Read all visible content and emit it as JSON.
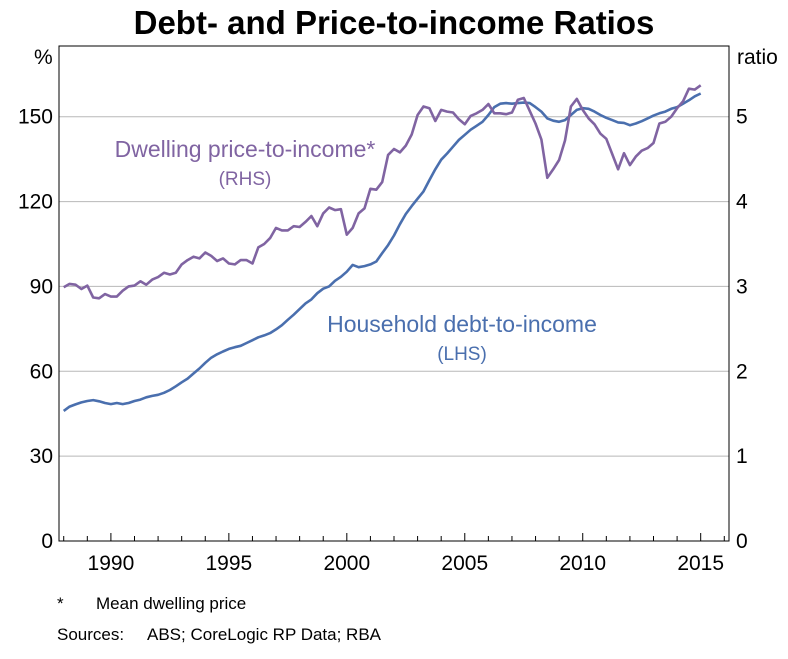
{
  "chart_data": {
    "type": "line",
    "title": "Debt- and Price-to-income Ratios",
    "left_axis": {
      "unit": "%",
      "range": [
        0,
        175
      ],
      "ticks": [
        0,
        30,
        60,
        90,
        120,
        150
      ]
    },
    "right_axis": {
      "unit": "ratio",
      "range": [
        0,
        5.8333
      ],
      "ticks": [
        0,
        1,
        2,
        3,
        4,
        5
      ]
    },
    "x_axis": {
      "range": [
        1987.8,
        2016.2
      ],
      "ticks": [
        1990,
        1995,
        2000,
        2005,
        2010,
        2015
      ]
    },
    "grid": "horizontal",
    "series": [
      {
        "name": "Household debt-to-income",
        "annotation_sub": "(LHS)",
        "color": "#4a6fae",
        "axis": "left",
        "points": [
          [
            1988.0,
            46
          ],
          [
            1988.25,
            47.5
          ],
          [
            1988.5,
            48.3
          ],
          [
            1988.75,
            49
          ],
          [
            1989.0,
            49.5
          ],
          [
            1989.25,
            49.8
          ],
          [
            1989.5,
            49.4
          ],
          [
            1989.75,
            48.8
          ],
          [
            1990.0,
            48.4
          ],
          [
            1990.25,
            48.8
          ],
          [
            1990.5,
            48.4
          ],
          [
            1990.75,
            48.8
          ],
          [
            1991.0,
            49.5
          ],
          [
            1991.25,
            50
          ],
          [
            1991.5,
            50.8
          ],
          [
            1991.75,
            51.3
          ],
          [
            1992.0,
            51.7
          ],
          [
            1992.25,
            52.4
          ],
          [
            1992.5,
            53.4
          ],
          [
            1992.75,
            54.7
          ],
          [
            1993.0,
            56.1
          ],
          [
            1993.25,
            57.4
          ],
          [
            1993.5,
            59.2
          ],
          [
            1993.75,
            61
          ],
          [
            1994.0,
            63
          ],
          [
            1994.25,
            64.8
          ],
          [
            1994.5,
            66
          ],
          [
            1994.75,
            67
          ],
          [
            1995.0,
            67.9
          ],
          [
            1995.25,
            68.5
          ],
          [
            1995.5,
            69
          ],
          [
            1995.75,
            70
          ],
          [
            1996.0,
            71
          ],
          [
            1996.25,
            72
          ],
          [
            1996.5,
            72.7
          ],
          [
            1996.75,
            73.5
          ],
          [
            1997.0,
            74.8
          ],
          [
            1997.25,
            76.3
          ],
          [
            1997.5,
            78.2
          ],
          [
            1997.75,
            80
          ],
          [
            1998.0,
            82
          ],
          [
            1998.25,
            84
          ],
          [
            1998.5,
            85.4
          ],
          [
            1998.75,
            87.6
          ],
          [
            1999.0,
            89.2
          ],
          [
            1999.25,
            90
          ],
          [
            1999.5,
            92
          ],
          [
            1999.75,
            93.4
          ],
          [
            2000.0,
            95.2
          ],
          [
            2000.25,
            97.6
          ],
          [
            2000.5,
            96.8
          ],
          [
            2000.75,
            97.2
          ],
          [
            2001.0,
            97.8
          ],
          [
            2001.25,
            98.8
          ],
          [
            2001.5,
            101.8
          ],
          [
            2001.75,
            104.6
          ],
          [
            2002.0,
            108
          ],
          [
            2002.25,
            112
          ],
          [
            2002.5,
            115.6
          ],
          [
            2002.75,
            118.4
          ],
          [
            2003.0,
            121
          ],
          [
            2003.25,
            123.6
          ],
          [
            2003.5,
            127.6
          ],
          [
            2003.75,
            131.4
          ],
          [
            2004.0,
            134.8
          ],
          [
            2004.25,
            137
          ],
          [
            2004.5,
            139.4
          ],
          [
            2004.75,
            141.8
          ],
          [
            2005.0,
            143.6
          ],
          [
            2005.25,
            145.4
          ],
          [
            2005.5,
            146.8
          ],
          [
            2005.75,
            148.2
          ],
          [
            2006.0,
            150.6
          ],
          [
            2006.25,
            153.4
          ],
          [
            2006.5,
            154.6
          ],
          [
            2006.75,
            154.8
          ],
          [
            2007.0,
            154.6
          ],
          [
            2007.25,
            154.8
          ],
          [
            2007.5,
            155
          ],
          [
            2007.75,
            154.8
          ],
          [
            2008.0,
            153.4
          ],
          [
            2008.25,
            151.8
          ],
          [
            2008.5,
            149.4
          ],
          [
            2008.75,
            148.6
          ],
          [
            2009.0,
            148.2
          ],
          [
            2009.25,
            148.8
          ],
          [
            2009.5,
            150.6
          ],
          [
            2009.75,
            152.4
          ],
          [
            2010.0,
            153
          ],
          [
            2010.25,
            152.8
          ],
          [
            2010.5,
            151.8
          ],
          [
            2010.75,
            150.6
          ],
          [
            2011.0,
            149.6
          ],
          [
            2011.25,
            148.8
          ],
          [
            2011.5,
            148
          ],
          [
            2011.75,
            147.8
          ],
          [
            2012.0,
            147
          ],
          [
            2012.25,
            147.6
          ],
          [
            2012.5,
            148.4
          ],
          [
            2012.75,
            149.4
          ],
          [
            2013.0,
            150.4
          ],
          [
            2013.25,
            151.2
          ],
          [
            2013.5,
            151.8
          ],
          [
            2013.75,
            152.8
          ],
          [
            2014.0,
            153.4
          ],
          [
            2014.25,
            154.6
          ],
          [
            2014.5,
            155.8
          ],
          [
            2014.75,
            157.2
          ],
          [
            2015.0,
            158.2
          ]
        ]
      },
      {
        "name": "Dwelling price-to-income*",
        "annotation_sub": "(RHS)",
        "color": "#8064a2",
        "axis": "right",
        "points": [
          [
            1988.0,
            2.99
          ],
          [
            1988.25,
            3.03
          ],
          [
            1988.5,
            3.02
          ],
          [
            1988.75,
            2.97
          ],
          [
            1989.0,
            3.01
          ],
          [
            1989.25,
            2.87
          ],
          [
            1989.5,
            2.86
          ],
          [
            1989.75,
            2.91
          ],
          [
            1990.0,
            2.88
          ],
          [
            1990.25,
            2.88
          ],
          [
            1990.5,
            2.95
          ],
          [
            1990.75,
            3.0
          ],
          [
            1991.0,
            3.01
          ],
          [
            1991.25,
            3.06
          ],
          [
            1991.5,
            3.02
          ],
          [
            1991.75,
            3.08
          ],
          [
            1992.0,
            3.11
          ],
          [
            1992.25,
            3.16
          ],
          [
            1992.5,
            3.14
          ],
          [
            1992.75,
            3.16
          ],
          [
            1993.0,
            3.26
          ],
          [
            1993.25,
            3.31
          ],
          [
            1993.5,
            3.35
          ],
          [
            1993.75,
            3.33
          ],
          [
            1994.0,
            3.4
          ],
          [
            1994.25,
            3.36
          ],
          [
            1994.5,
            3.3
          ],
          [
            1994.75,
            3.33
          ],
          [
            1995.0,
            3.27
          ],
          [
            1995.25,
            3.26
          ],
          [
            1995.5,
            3.31
          ],
          [
            1995.75,
            3.31
          ],
          [
            1996.0,
            3.27
          ],
          [
            1996.25,
            3.46
          ],
          [
            1996.5,
            3.5
          ],
          [
            1996.75,
            3.57
          ],
          [
            1997.0,
            3.69
          ],
          [
            1997.25,
            3.66
          ],
          [
            1997.5,
            3.66
          ],
          [
            1997.75,
            3.71
          ],
          [
            1998.0,
            3.7
          ],
          [
            1998.25,
            3.76
          ],
          [
            1998.5,
            3.83
          ],
          [
            1998.75,
            3.71
          ],
          [
            1999.0,
            3.86
          ],
          [
            1999.25,
            3.93
          ],
          [
            1999.5,
            3.9
          ],
          [
            1999.75,
            3.91
          ],
          [
            2000.0,
            3.61
          ],
          [
            2000.25,
            3.69
          ],
          [
            2000.5,
            3.86
          ],
          [
            2000.75,
            3.92
          ],
          [
            2001.0,
            4.15
          ],
          [
            2001.25,
            4.14
          ],
          [
            2001.5,
            4.23
          ],
          [
            2001.75,
            4.55
          ],
          [
            2002.0,
            4.62
          ],
          [
            2002.25,
            4.58
          ],
          [
            2002.5,
            4.66
          ],
          [
            2002.75,
            4.79
          ],
          [
            2003.0,
            5.02
          ],
          [
            2003.25,
            5.12
          ],
          [
            2003.5,
            5.1
          ],
          [
            2003.75,
            4.95
          ],
          [
            2004.0,
            5.08
          ],
          [
            2004.25,
            5.06
          ],
          [
            2004.5,
            5.05
          ],
          [
            2004.75,
            4.97
          ],
          [
            2005.0,
            4.91
          ],
          [
            2005.25,
            5.01
          ],
          [
            2005.5,
            5.04
          ],
          [
            2005.75,
            5.08
          ],
          [
            2006.0,
            5.15
          ],
          [
            2006.25,
            5.04
          ],
          [
            2006.5,
            5.04
          ],
          [
            2006.75,
            5.03
          ],
          [
            2007.0,
            5.05
          ],
          [
            2007.25,
            5.2
          ],
          [
            2007.5,
            5.22
          ],
          [
            2007.75,
            5.07
          ],
          [
            2008.0,
            4.92
          ],
          [
            2008.25,
            4.73
          ],
          [
            2008.5,
            4.28
          ],
          [
            2008.75,
            4.38
          ],
          [
            2009.0,
            4.49
          ],
          [
            2009.25,
            4.72
          ],
          [
            2009.5,
            5.12
          ],
          [
            2009.75,
            5.21
          ],
          [
            2010.0,
            5.08
          ],
          [
            2010.25,
            4.98
          ],
          [
            2010.5,
            4.91
          ],
          [
            2010.75,
            4.8
          ],
          [
            2011.0,
            4.74
          ],
          [
            2011.25,
            4.56
          ],
          [
            2011.5,
            4.38
          ],
          [
            2011.75,
            4.57
          ],
          [
            2012.0,
            4.43
          ],
          [
            2012.25,
            4.53
          ],
          [
            2012.5,
            4.6
          ],
          [
            2012.75,
            4.63
          ],
          [
            2013.0,
            4.69
          ],
          [
            2013.25,
            4.92
          ],
          [
            2013.5,
            4.94
          ],
          [
            2013.75,
            5.0
          ],
          [
            2014.0,
            5.1
          ],
          [
            2014.25,
            5.18
          ],
          [
            2014.5,
            5.33
          ],
          [
            2014.75,
            5.32
          ],
          [
            2015.0,
            5.37
          ]
        ]
      }
    ]
  },
  "footnote": {
    "marker": "*",
    "text": "Mean dwelling price"
  },
  "sources": {
    "label": "Sources:",
    "text": "ABS; CoreLogic RP Data; RBA"
  }
}
